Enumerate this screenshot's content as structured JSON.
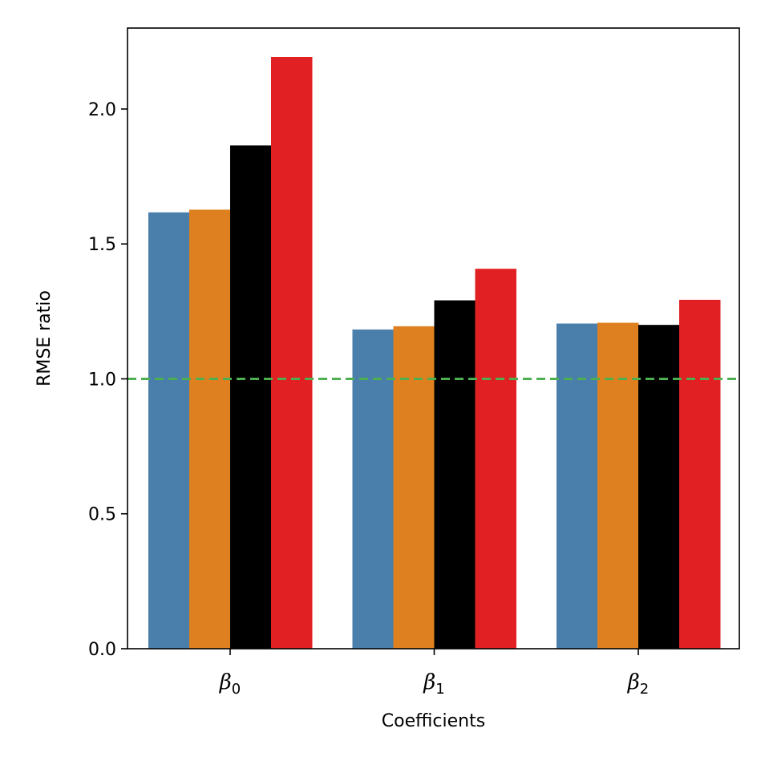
{
  "chart_data": {
    "type": "bar",
    "categories": [
      {
        "symbol": "β",
        "subscript": "0"
      },
      {
        "symbol": "β",
        "subscript": "1"
      },
      {
        "symbol": "β",
        "subscript": "2"
      }
    ],
    "series": [
      {
        "color": "#4a7eab",
        "values": [
          1.617,
          1.183,
          1.205
        ]
      },
      {
        "color": "#df8020",
        "values": [
          1.627,
          1.195,
          1.208
        ]
      },
      {
        "color": "#000000",
        "values": [
          1.865,
          1.291,
          1.2
        ]
      },
      {
        "color": "#e02022",
        "values": [
          2.193,
          1.408,
          1.293
        ]
      }
    ],
    "title": "",
    "xlabel": "Coefficients",
    "ylabel": "RMSE ratio",
    "ylim": [
      0,
      2.3
    ],
    "yticks": [
      0.0,
      0.5,
      1.0,
      1.5,
      2.0
    ],
    "ytick_labels": [
      "0.0",
      "0.5",
      "1.0",
      "1.5",
      "2.0"
    ],
    "reference_line": {
      "y": 1.0,
      "color": "#4caf50",
      "style": "dashed"
    },
    "grid": false,
    "legend": "none"
  }
}
